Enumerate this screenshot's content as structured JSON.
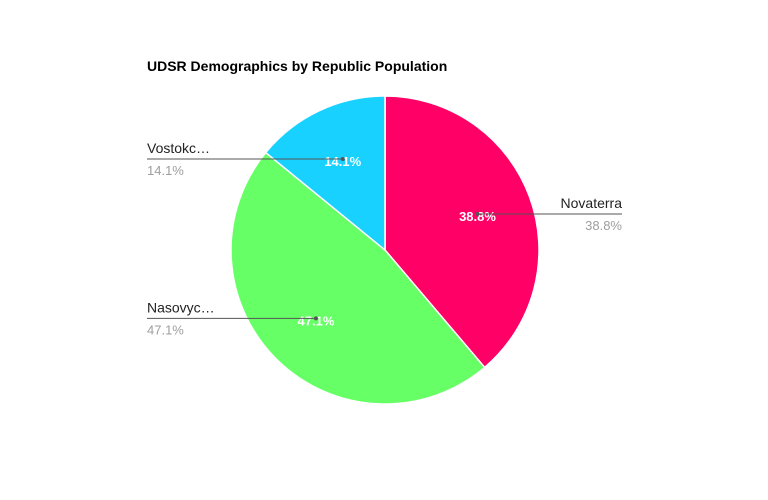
{
  "chart_data": {
    "type": "pie",
    "title": "UDSR Demographics by Republic Population",
    "slices": [
      {
        "label": "Novaterra",
        "label_shown": "Novaterra",
        "value": 38.8,
        "percent_text": "38.8%",
        "color": "#ff0066",
        "callout_side": "right"
      },
      {
        "label": "Nasovyc…",
        "label_shown": "Nasovyc…",
        "value": 47.1,
        "percent_text": "47.1%",
        "color": "#66ff66",
        "callout_side": "left"
      },
      {
        "label": "Vostokc…",
        "label_shown": "Vostokc…",
        "value": 14.1,
        "percent_text": "14.1%",
        "color": "#18d1ff",
        "callout_side": "left"
      }
    ],
    "start_angle_deg": 0,
    "direction": "clockwise",
    "legend": "callouts"
  }
}
